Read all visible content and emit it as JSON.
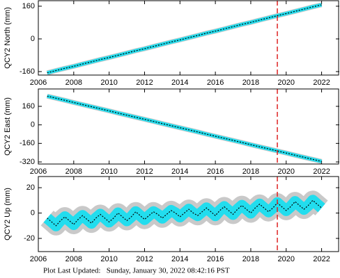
{
  "chart_data": [
    {
      "type": "line",
      "ylabel": "QCY2 North (mm)",
      "xlim": [
        2006,
        2023
      ],
      "xticks": [
        2006,
        2008,
        2010,
        2012,
        2014,
        2016,
        2018,
        2020,
        2022
      ],
      "ylim": [
        -177,
        187
      ],
      "yticks": [
        -160,
        0,
        160
      ],
      "vline": 2019.5,
      "vline_color": "#dd2222",
      "x": [
        2006.5,
        2007,
        2007.5,
        2008,
        2008.5,
        2009,
        2009.5,
        2010,
        2010.5,
        2011,
        2011.5,
        2012,
        2012.5,
        2013,
        2013.5,
        2014,
        2014.5,
        2015,
        2015.5,
        2016,
        2016.5,
        2017,
        2017.5,
        2018,
        2018.5,
        2019,
        2019.5,
        2020,
        2020.5,
        2021,
        2021.5,
        2022
      ],
      "series": [
        {
          "color": "#22ddee",
          "values": [
            -166,
            -155,
            -144,
            -134,
            -123,
            -112,
            -101,
            -91,
            -80,
            -69,
            -58,
            -48,
            -37,
            -26,
            -15,
            -5,
            6,
            17,
            28,
            38,
            49,
            60,
            71,
            81,
            92,
            103,
            114,
            124,
            135,
            146,
            157,
            167
          ]
        }
      ]
    },
    {
      "type": "line",
      "ylabel": "QCY2 East (mm)",
      "xlim": [
        2006,
        2023
      ],
      "xticks": [
        2006,
        2008,
        2010,
        2012,
        2014,
        2016,
        2018,
        2020,
        2022
      ],
      "ylim": [
        -338,
        310
      ],
      "yticks": [
        -320,
        -160,
        0,
        160
      ],
      "vline": 2019.5,
      "vline_color": "#dd2222",
      "x": [
        2006.5,
        2007,
        2007.5,
        2008,
        2008.5,
        2009,
        2009.5,
        2010,
        2010.5,
        2011,
        2011.5,
        2012,
        2012.5,
        2013,
        2013.5,
        2014,
        2014.5,
        2015,
        2015.5,
        2016,
        2016.5,
        2017,
        2017.5,
        2018,
        2018.5,
        2019,
        2019.5,
        2020,
        2020.5,
        2021,
        2021.5,
        2022
      ],
      "series": [
        {
          "color": "#22ddee",
          "values": [
            248,
            230,
            212,
            193,
            175,
            157,
            139,
            121,
            102,
            84,
            66,
            48,
            30,
            11,
            -7,
            -25,
            -43,
            -61,
            -80,
            -98,
            -116,
            -134,
            -152,
            -171,
            -189,
            -207,
            -225,
            -243,
            -262,
            -280,
            -298,
            -316
          ]
        }
      ]
    },
    {
      "type": "line",
      "ylabel": "QCY2 Up (mm)",
      "xlim": [
        2006,
        2023
      ],
      "xticks": [
        2006,
        2008,
        2010,
        2012,
        2014,
        2016,
        2018,
        2020,
        2022
      ],
      "ylim": [
        -30.4,
        28.8
      ],
      "yticks": [
        -20,
        0,
        20
      ],
      "vline": 2019.5,
      "vline_color": "#dd2222",
      "x": [
        2006.5,
        2006.75,
        2007,
        2007.25,
        2007.5,
        2007.75,
        2008,
        2008.25,
        2008.5,
        2008.75,
        2009,
        2009.25,
        2009.5,
        2009.75,
        2010,
        2010.25,
        2010.5,
        2010.75,
        2011,
        2011.25,
        2011.5,
        2011.75,
        2012,
        2012.25,
        2012.5,
        2012.75,
        2013,
        2013.25,
        2013.5,
        2013.75,
        2014,
        2014.25,
        2014.5,
        2014.75,
        2015,
        2015.25,
        2015.5,
        2015.75,
        2016,
        2016.25,
        2016.5,
        2016.75,
        2017,
        2017.25,
        2017.5,
        2017.75,
        2018,
        2018.25,
        2018.5,
        2018.75,
        2019,
        2019.25,
        2019.5,
        2019.75,
        2020,
        2020.25,
        2020.5,
        2020.75,
        2021,
        2021.25,
        2021.5,
        2021.75,
        2022
      ],
      "series": [
        {
          "color": "#22ddee",
          "values": [
            -4,
            -7,
            -10,
            -6,
            -3,
            -6,
            -9,
            -5,
            -2,
            -5,
            -8,
            -4,
            -1,
            -4,
            -7,
            -4,
            0,
            -3,
            -6,
            -3,
            1,
            -2,
            -5,
            -2,
            1,
            -1,
            -4,
            -1,
            2,
            0,
            -3,
            0,
            3,
            0,
            -2,
            1,
            4,
            1,
            -2,
            2,
            5,
            2,
            -1,
            3,
            6,
            3,
            0,
            4,
            7,
            4,
            1,
            4,
            8,
            5,
            2,
            5,
            9,
            6,
            3,
            6,
            10,
            7,
            4
          ]
        }
      ]
    }
  ],
  "footer": "Plot Last Updated:   Sunday, January 30, 2022 08:42:16 PST"
}
